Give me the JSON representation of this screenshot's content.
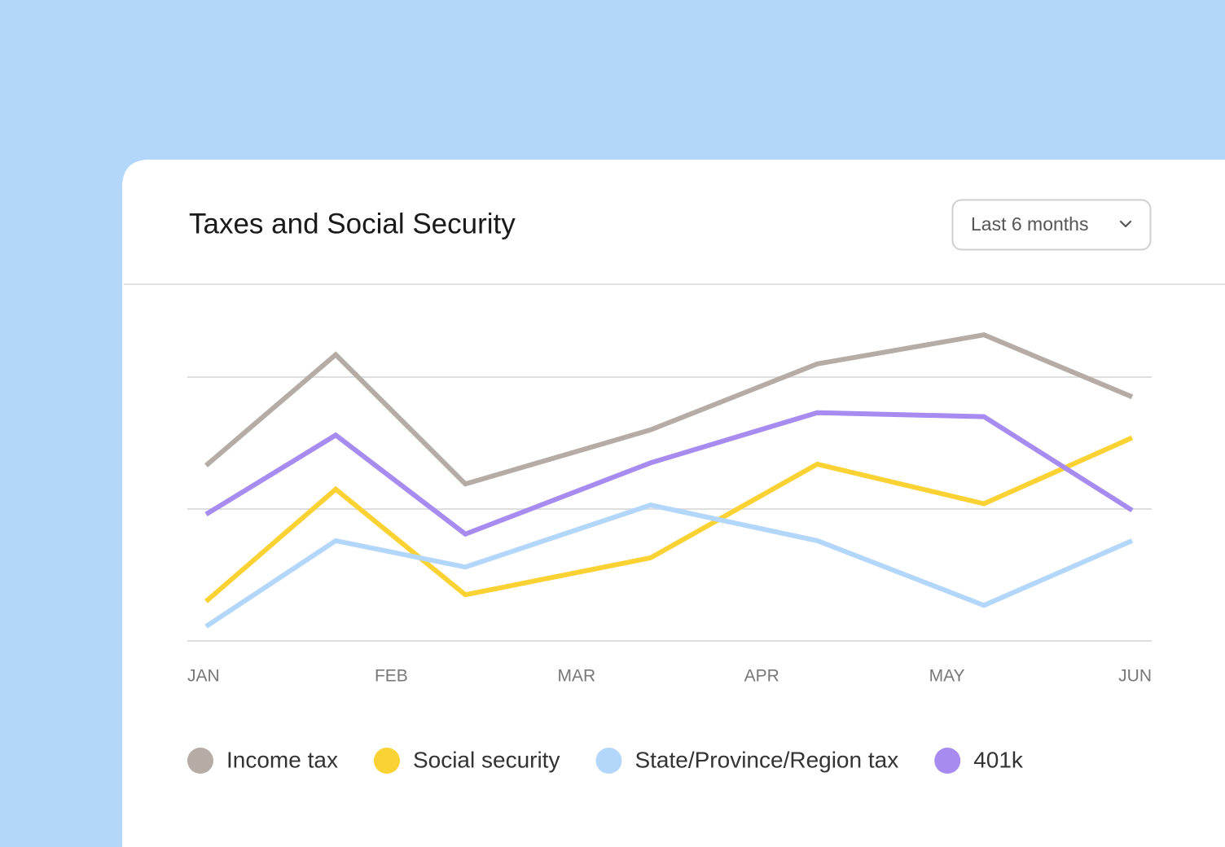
{
  "range_selector": "Last 6 months",
  "chart_data": {
    "type": "line",
    "title": "Taxes and Social Security",
    "x": [
      0,
      0.7,
      1.4,
      2.4,
      3.3,
      4.2,
      5
    ],
    "xlim": [
      0,
      5
    ],
    "xticks": [
      {
        "value": 0,
        "label": "JAN"
      },
      {
        "value": 1,
        "label": "FEB"
      },
      {
        "value": 2,
        "label": "MAR"
      },
      {
        "value": 3,
        "label": "APR"
      },
      {
        "value": 4,
        "label": "MAY"
      },
      {
        "value": 5,
        "label": "JUN"
      }
    ],
    "ylim": [
      0,
      2.5
    ],
    "yticks": [
      0,
      1,
      2
    ],
    "grid": true,
    "legend": "bottom",
    "series": [
      {
        "name": "Income tax",
        "color": "#b5aca6",
        "values": [
          1.33,
          2.17,
          1.19,
          1.6,
          2.1,
          2.32,
          1.85
        ]
      },
      {
        "name": "Social security",
        "color": "#fbd234",
        "values": [
          0.3,
          1.15,
          0.35,
          0.63,
          1.34,
          1.04,
          1.54
        ]
      },
      {
        "name": "State/Province/Region tax",
        "color": "#b3d7fb",
        "values": [
          0.11,
          0.76,
          0.56,
          1.03,
          0.76,
          0.27,
          0.76
        ]
      },
      {
        "name": "401k",
        "color": "#a78bf0",
        "values": [
          0.96,
          1.56,
          0.81,
          1.35,
          1.73,
          1.7,
          0.99
        ]
      }
    ]
  }
}
